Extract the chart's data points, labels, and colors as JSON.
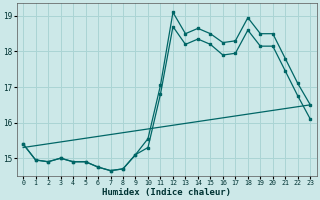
{
  "xlabel": "Humidex (Indice chaleur)",
  "bg_color": "#cce8e8",
  "line_color": "#006666",
  "grid_color": "#aad4d4",
  "xlim": [
    -0.5,
    23.5
  ],
  "ylim": [
    14.5,
    19.35
  ],
  "yticks": [
    15,
    16,
    17,
    18,
    19
  ],
  "xticks": [
    0,
    1,
    2,
    3,
    4,
    5,
    6,
    7,
    8,
    9,
    10,
    11,
    12,
    13,
    14,
    15,
    16,
    17,
    18,
    19,
    20,
    21,
    22,
    23
  ],
  "line1_x": [
    0,
    1,
    2,
    3,
    4,
    5,
    6,
    7,
    8,
    9,
    10,
    11,
    12,
    13,
    14,
    15,
    16,
    17,
    18,
    19,
    20,
    21,
    22,
    23
  ],
  "line1_y": [
    15.4,
    14.95,
    14.9,
    15.0,
    14.9,
    14.9,
    14.75,
    14.65,
    14.7,
    15.1,
    15.55,
    17.05,
    19.1,
    18.5,
    18.65,
    18.5,
    18.25,
    18.3,
    18.95,
    18.5,
    18.5,
    17.8,
    17.1,
    16.5
  ],
  "line2_x": [
    0,
    1,
    2,
    3,
    4,
    5,
    6,
    7,
    8,
    9,
    10,
    11,
    12,
    13,
    14,
    15,
    16,
    17,
    18,
    19,
    20,
    21,
    22,
    23
  ],
  "line2_y": [
    15.4,
    14.95,
    14.9,
    15.0,
    14.9,
    14.9,
    14.75,
    14.65,
    14.7,
    15.1,
    15.3,
    16.8,
    18.7,
    18.2,
    18.35,
    18.2,
    17.9,
    17.95,
    18.6,
    18.15,
    18.15,
    17.45,
    16.75,
    16.1
  ],
  "line3_x": [
    0,
    23
  ],
  "line3_y": [
    15.3,
    16.5
  ]
}
